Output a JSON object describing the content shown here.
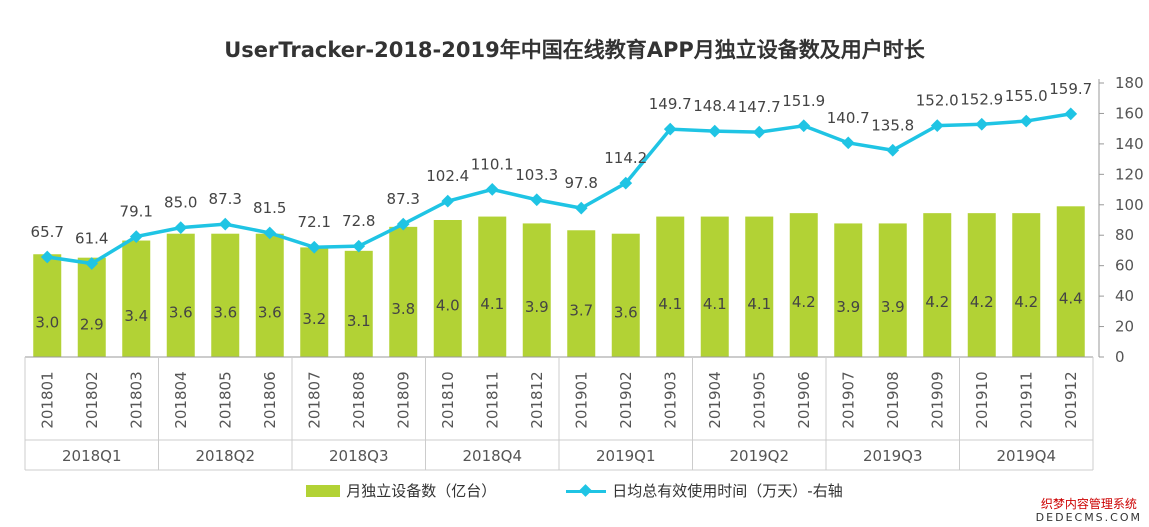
{
  "chart_data": {
    "type": "bar+line",
    "title": "UserTracker-2018-2019年中国在线教育APP月独立设备数及用户时长",
    "categories": [
      "201801",
      "201802",
      "201803",
      "201804",
      "201805",
      "201806",
      "201807",
      "201808",
      "201809",
      "201810",
      "201811",
      "201812",
      "201901",
      "201902",
      "201903",
      "201904",
      "201905",
      "201906",
      "201907",
      "201908",
      "201909",
      "201910",
      "201911",
      "201912"
    ],
    "groups": [
      "2018Q1",
      "2018Q2",
      "2018Q3",
      "2018Q4",
      "2019Q1",
      "2019Q2",
      "2019Q3",
      "2019Q4"
    ],
    "series": [
      {
        "name": "月独立设备数（亿台）",
        "type": "bar",
        "axis": "left-hidden",
        "color": "#b2d235",
        "values": [
          3.0,
          2.9,
          3.4,
          3.6,
          3.6,
          3.6,
          3.2,
          3.1,
          3.8,
          4.0,
          4.1,
          3.9,
          3.7,
          3.6,
          4.1,
          4.1,
          4.1,
          4.2,
          3.9,
          3.9,
          4.2,
          4.2,
          4.2,
          4.4
        ]
      },
      {
        "name": "日均总有效使用时间（万天）-右轴",
        "type": "line",
        "axis": "right",
        "color": "#1fc4e4",
        "values": [
          65.7,
          61.4,
          79.1,
          85.0,
          87.3,
          81.5,
          72.1,
          72.8,
          87.3,
          102.4,
          110.1,
          103.3,
          97.8,
          114.2,
          149.7,
          148.4,
          147.7,
          151.9,
          140.7,
          135.8,
          152.0,
          152.9,
          155.0,
          159.7
        ]
      }
    ],
    "y_right": {
      "lim": [
        0,
        180
      ],
      "ticks": [
        0,
        20,
        40,
        60,
        80,
        100,
        120,
        140,
        160,
        180
      ]
    },
    "y_left_hidden_lim": [
      0,
      8
    ],
    "grid": false,
    "legend": "bottom"
  },
  "watermark": {
    "line1": "织梦内容管理系统",
    "line2": "DEDECMS.COM"
  }
}
